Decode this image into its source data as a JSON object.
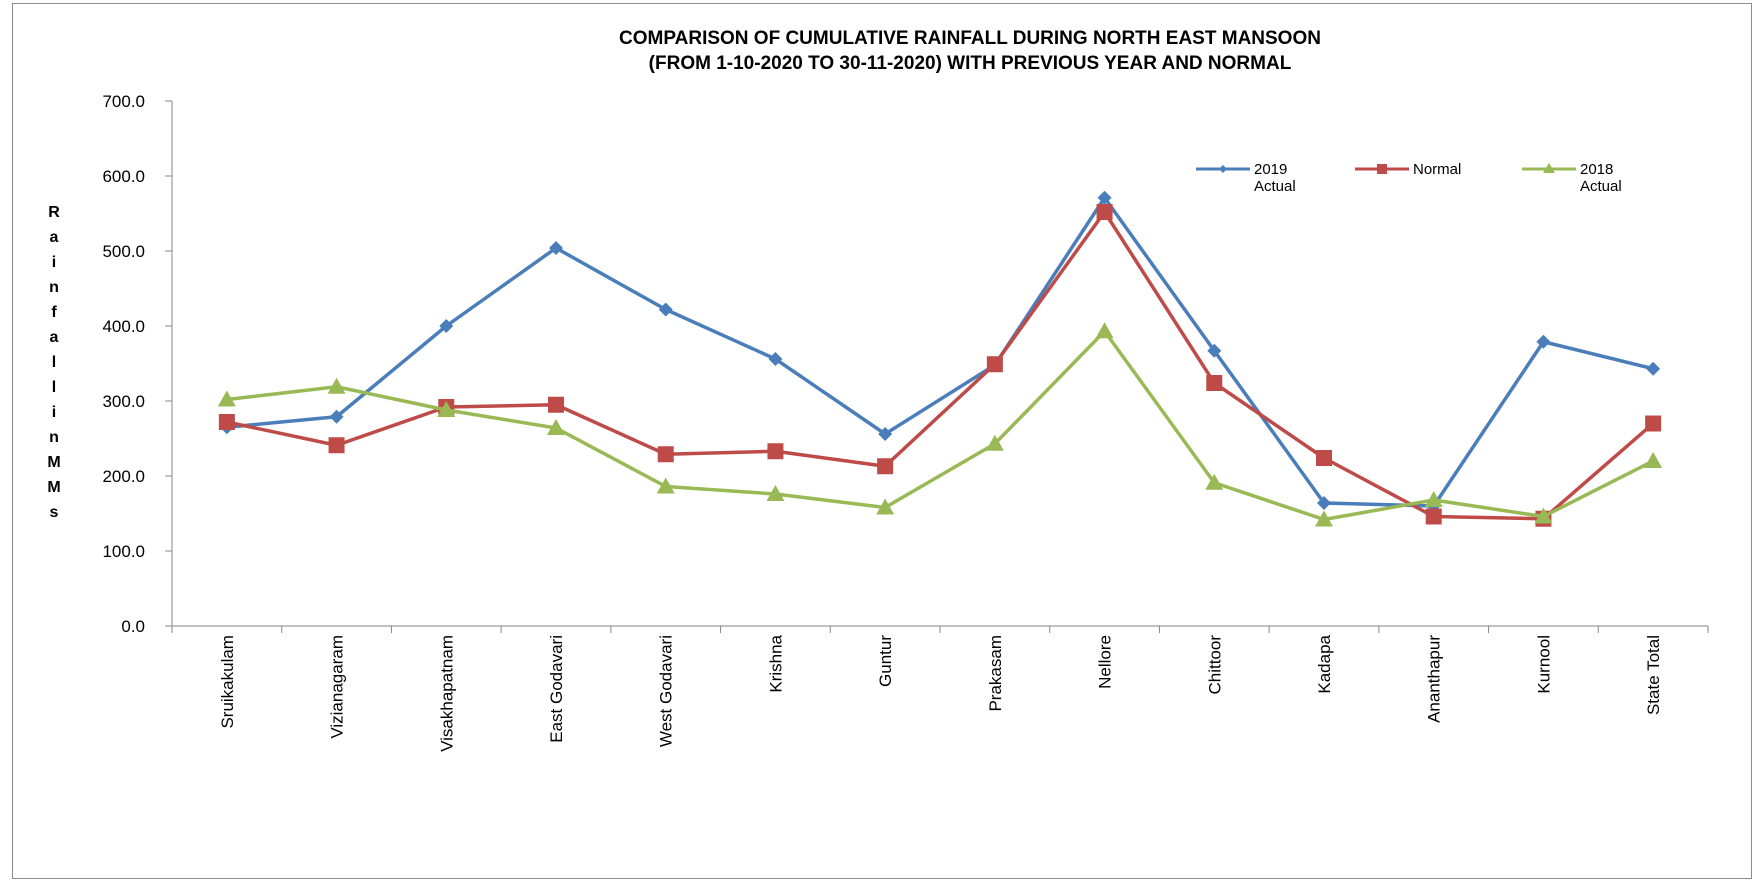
{
  "chart_data": {
    "type": "line",
    "title": "COMPARISON OF CUMULATIVE RAINFALL DURING NORTH EAST MANSOON",
    "subtitle": "(FROM 1-10-2020 TO 30-11-2020)  WITH PREVIOUS YEAR AND NORMAL",
    "ylabel": "Rainfall in MMs",
    "xlabel": "",
    "ylim": [
      0,
      700
    ],
    "yticks": [
      "0.0",
      "100.0",
      "200.0",
      "300.0",
      "400.0",
      "500.0",
      "600.0",
      "700.0"
    ],
    "grid": false,
    "legend_position": "top-right",
    "categories": [
      "Sruikakulam",
      "Vizianagaram",
      "Visakhapatnam",
      "East Godavari",
      "West Godavari",
      "Krishna",
      "Guntur",
      "Prakasam",
      "Nellore",
      "Chittoor",
      "Kadapa",
      "Ananthapur",
      "Kurnool",
      "State Total"
    ],
    "series": [
      {
        "name": "2019 Actual",
        "legend_lines": [
          "2019",
          "Actual"
        ],
        "color": "#4a7ebb",
        "marker": "diamond",
        "values": [
          265,
          279,
          400,
          504,
          422,
          356,
          256,
          348,
          571,
          367,
          164,
          160,
          379,
          343
        ]
      },
      {
        "name": "Normal",
        "legend_lines": [
          "Normal"
        ],
        "color": "#be4b48",
        "marker": "square",
        "values": [
          272,
          241,
          292,
          295,
          229,
          233,
          213,
          349,
          552,
          324,
          224,
          146,
          143,
          270
        ]
      },
      {
        "name": "2018 Actual",
        "legend_lines": [
          "2018",
          "Actual"
        ],
        "color": "#98b954",
        "marker": "triangle",
        "values": [
          302,
          319,
          288,
          264,
          186,
          176,
          158,
          243,
          393,
          191,
          142,
          168,
          146,
          220
        ]
      }
    ]
  }
}
